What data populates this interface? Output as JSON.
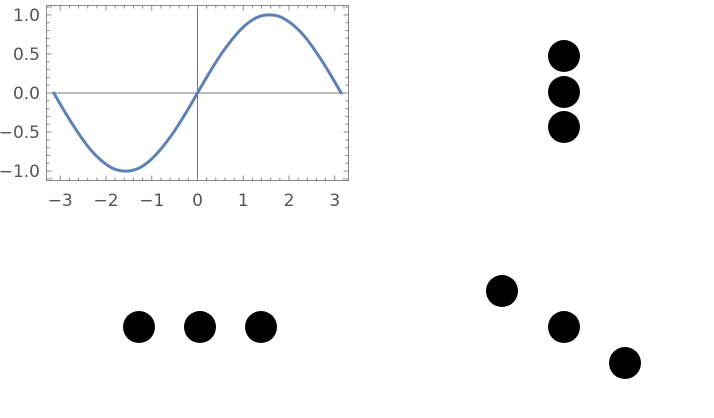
{
  "chart_data": {
    "type": "line",
    "title": "",
    "xlabel": "",
    "ylabel": "",
    "xlim": [
      -3.3,
      3.3
    ],
    "ylim": [
      -1.12,
      1.12
    ],
    "grid": false,
    "axes_through_origin": true,
    "frame": true,
    "x_ticks": [
      -3,
      -2,
      -1,
      0,
      1,
      2,
      3
    ],
    "x_tick_labels": [
      "−3",
      "−2",
      "−1",
      "0",
      "1",
      "2",
      "3"
    ],
    "y_ticks": [
      -1,
      -0.5,
      0,
      0.5,
      1
    ],
    "y_tick_labels": [
      "−1.0",
      "−0.5",
      "0.0",
      "0.5",
      "1.0"
    ],
    "series": [
      {
        "color": "#5E81B5",
        "x": [
          -3.14,
          -2.88,
          -2.62,
          -2.36,
          -2.09,
          -1.83,
          -1.57,
          -1.31,
          -1.05,
          -0.79,
          -0.52,
          -0.26,
          0,
          0.26,
          0.52,
          0.79,
          1.05,
          1.31,
          1.57,
          1.83,
          2.09,
          2.36,
          2.62,
          2.88,
          3.14
        ],
        "y": [
          0,
          -0.26,
          -0.5,
          -0.71,
          -0.87,
          -0.97,
          -1,
          -0.97,
          -0.87,
          -0.71,
          -0.5,
          -0.26,
          0,
          0.26,
          0.5,
          0.71,
          0.87,
          0.97,
          1,
          0.97,
          0.87,
          0.71,
          0.5,
          0.26,
          0
        ]
      }
    ]
  },
  "graphics": {
    "dot_color": "#000000",
    "groups": [
      {
        "name": "vertical-column",
        "count": 3
      },
      {
        "name": "horizontal-row",
        "count": 3
      },
      {
        "name": "diagonal",
        "count": 3
      }
    ]
  }
}
